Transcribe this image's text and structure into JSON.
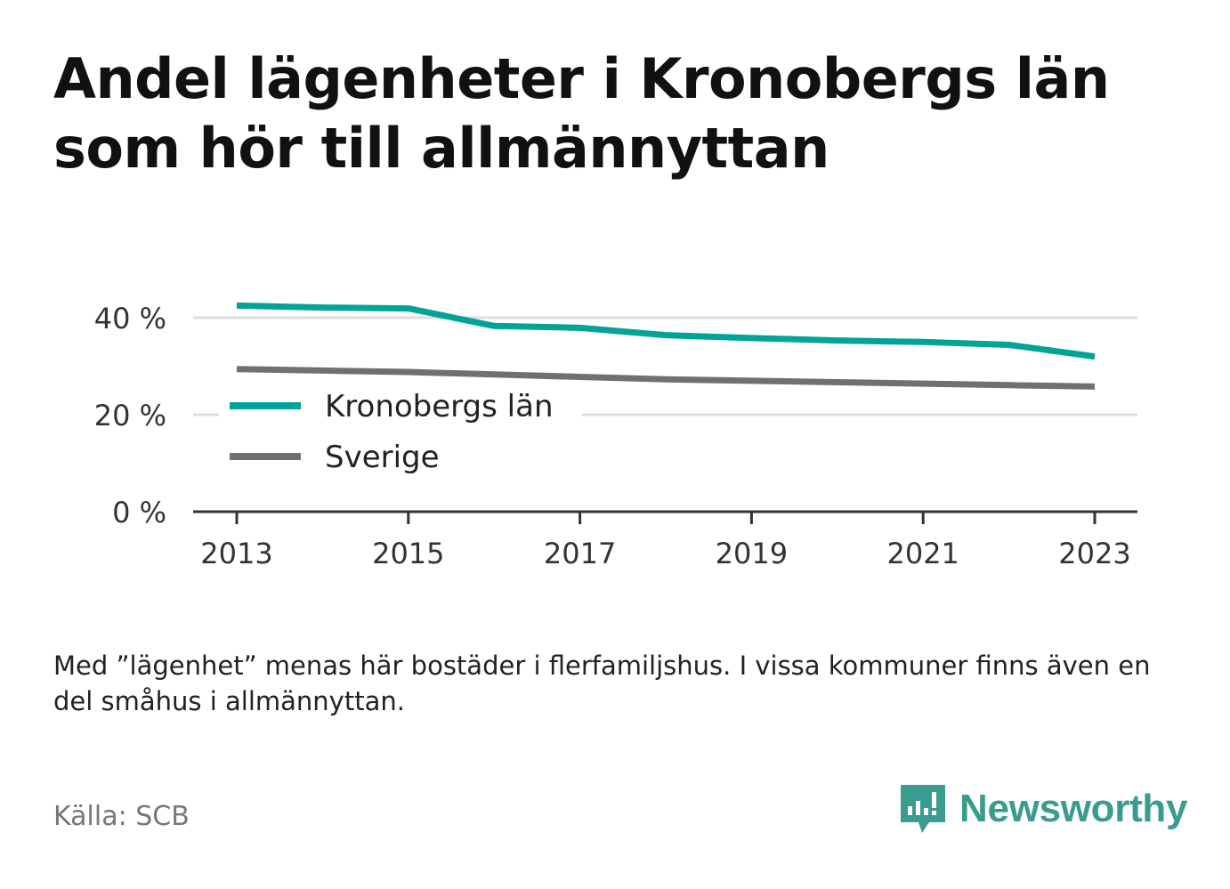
{
  "title": "Andel lägenheter i Kronobergs län som hör till allmännyttan",
  "note": "Med ”lägenhet” menas här bostäder i flerfamiljshus. I vissa kommuner finns även en del småhus i allmännyttan.",
  "source": "Källa: SCB",
  "brand": "Newsworthy",
  "colors": {
    "kronoberg": "#00a398",
    "sverige": "#707074",
    "grid": "#dddddd",
    "axis": "#333333",
    "brand": "#3a9c91"
  },
  "chart_data": {
    "type": "line",
    "x": [
      2013,
      2014,
      2015,
      2016,
      2017,
      2018,
      2019,
      2020,
      2021,
      2022,
      2023
    ],
    "x_ticks": [
      "2013",
      "2015",
      "2017",
      "2019",
      "2021",
      "2023"
    ],
    "y_ticks": [
      "0 %",
      "20 %",
      "40 %"
    ],
    "ylim": [
      0,
      40
    ],
    "grid": true,
    "legend_position": "middle-left",
    "series": [
      {
        "name": "Kronobergs län",
        "color": "#00a398",
        "values": [
          42.5,
          42.1,
          41.9,
          38.3,
          37.9,
          36.4,
          35.8,
          35.3,
          35.0,
          34.4,
          32.0
        ]
      },
      {
        "name": "Sverige",
        "color": "#707074",
        "values": [
          29.4,
          29.1,
          28.8,
          28.3,
          27.8,
          27.3,
          27.0,
          26.7,
          26.4,
          26.1,
          25.8
        ]
      }
    ]
  }
}
